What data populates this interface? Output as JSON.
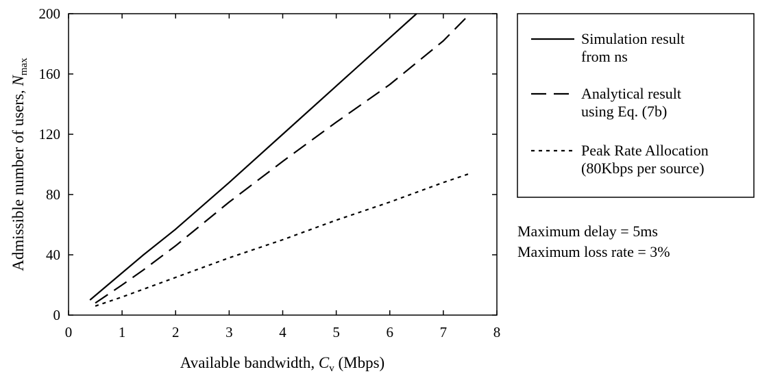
{
  "chart_data": {
    "type": "line",
    "xlabel": {
      "prefix": "Available bandwidth, ",
      "var": "C",
      "sub": "v",
      "suffix": " (Mbps)"
    },
    "ylabel": {
      "prefix": "Admissible number of users, ",
      "var": "N",
      "sub": "max"
    },
    "xlim": [
      0,
      8
    ],
    "ylim": [
      0,
      200
    ],
    "xticks": [
      "0",
      "1",
      "2",
      "3",
      "4",
      "5",
      "6",
      "7",
      "8"
    ],
    "yticks": [
      "0",
      "40",
      "80",
      "120",
      "160",
      "200"
    ],
    "grid": false,
    "legend_position": "right",
    "series": [
      {
        "name": [
          "Simulation result",
          "from ns"
        ],
        "style": "solid",
        "x": [
          0.4,
          1.0,
          1.4,
          2.0,
          3.0,
          4.0,
          5.0,
          6.0,
          6.5
        ],
        "y": [
          10,
          28,
          40,
          57,
          88,
          120,
          152,
          184,
          200
        ]
      },
      {
        "name": [
          "Analytical result",
          "using Eq. (7b)"
        ],
        "style": "dashdot",
        "x": [
          0.5,
          1.0,
          1.4,
          2.0,
          3.0,
          4.0,
          5.0,
          6.0,
          7.0,
          7.5
        ],
        "y": [
          8,
          20,
          30,
          46,
          75,
          102,
          128,
          153,
          182,
          200
        ]
      },
      {
        "name": [
          "Peak Rate Allocation",
          "(80Kbps per source)"
        ],
        "style": "dotted",
        "x": [
          0.5,
          1.0,
          2.0,
          3.0,
          4.0,
          5.0,
          6.0,
          7.0,
          7.5
        ],
        "y": [
          6,
          12,
          25,
          38,
          50,
          63,
          75,
          88,
          94
        ]
      }
    ],
    "annotations": [
      "Maximum delay = 5ms",
      "Maximum loss rate = 3%"
    ]
  }
}
